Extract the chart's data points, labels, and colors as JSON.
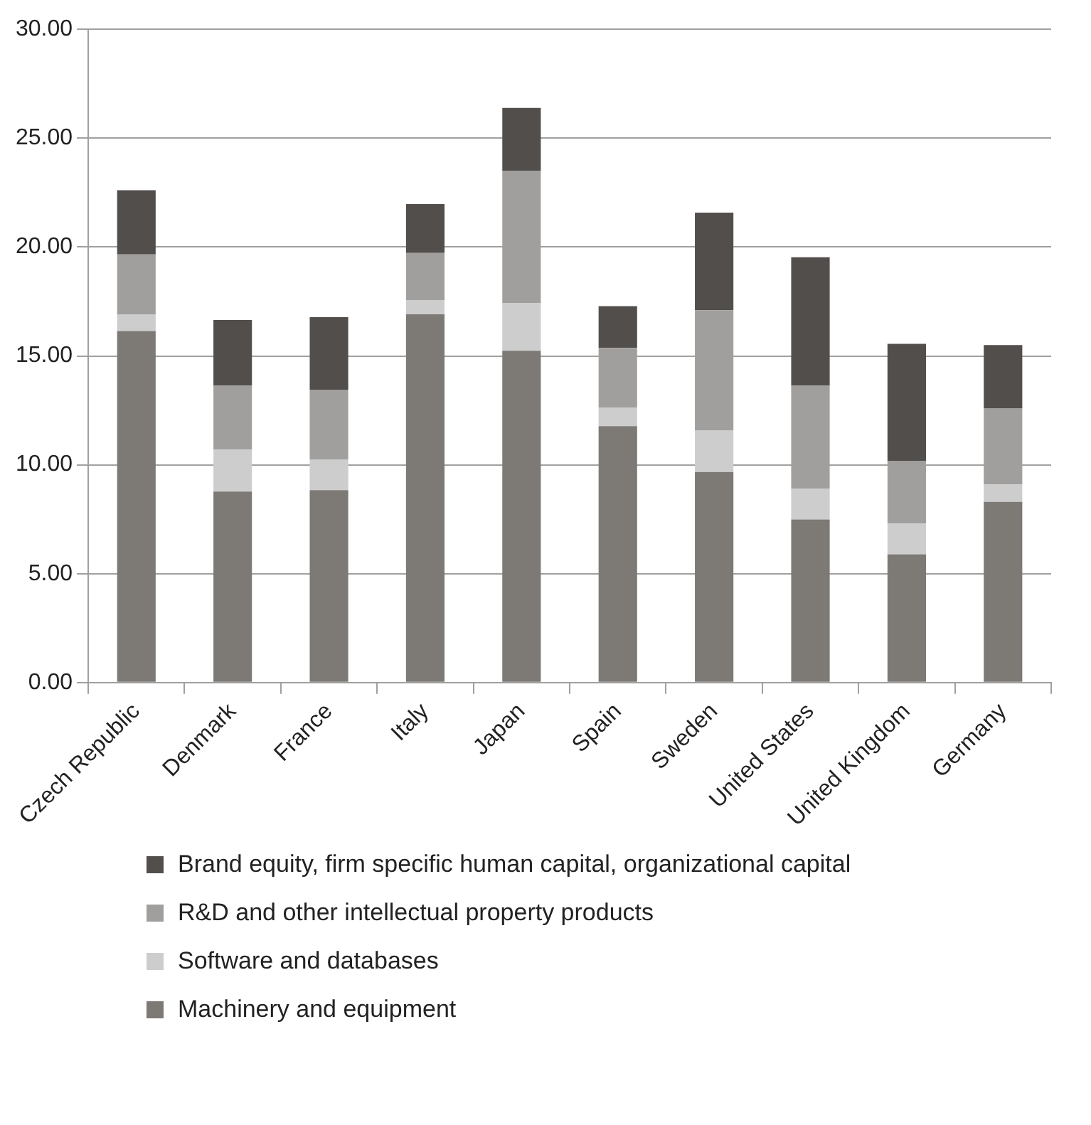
{
  "chart_data": {
    "type": "bar",
    "stacked": true,
    "categories": [
      "Czech Republic",
      "Denmark",
      "France",
      "Italy",
      "Japan",
      "Spain",
      "Sweden",
      "United States",
      "United Kingdom",
      "Germany"
    ],
    "series": [
      {
        "name": "Machinery and equipment",
        "color": "#7d7975",
        "values": [
          16.14,
          8.77,
          8.84,
          16.91,
          15.24,
          11.78,
          9.67,
          7.49,
          5.89,
          8.3
        ]
      },
      {
        "name": "Software and databases",
        "color": "#cdcdcd",
        "values": [
          0.77,
          1.93,
          1.41,
          0.64,
          2.18,
          0.84,
          1.92,
          1.41,
          1.41,
          0.8
        ]
      },
      {
        "name": "R&D and other intellectual property products",
        "color": "#a09f9d",
        "values": [
          2.75,
          2.94,
          3.2,
          2.18,
          6.09,
          2.75,
          5.51,
          4.74,
          2.88,
          3.5
        ]
      },
      {
        "name": "Brand equity, firm specific human capital, organizational capital",
        "color": "#524e4c",
        "values": [
          2.95,
          3.01,
          3.33,
          2.24,
          2.88,
          1.92,
          4.48,
          5.89,
          5.38,
          2.9
        ]
      }
    ],
    "ylim": [
      0,
      30
    ],
    "yticks": [
      {
        "value": 0,
        "label": "0.00"
      },
      {
        "value": 5,
        "label": "5.00"
      },
      {
        "value": 10,
        "label": "10.00"
      },
      {
        "value": 15,
        "label": "15.00"
      },
      {
        "value": 20,
        "label": "20.00"
      },
      {
        "value": 25,
        "label": "25.00"
      },
      {
        "value": 30,
        "label": "30.00"
      }
    ],
    "grid": "y",
    "legend": "bottom"
  }
}
